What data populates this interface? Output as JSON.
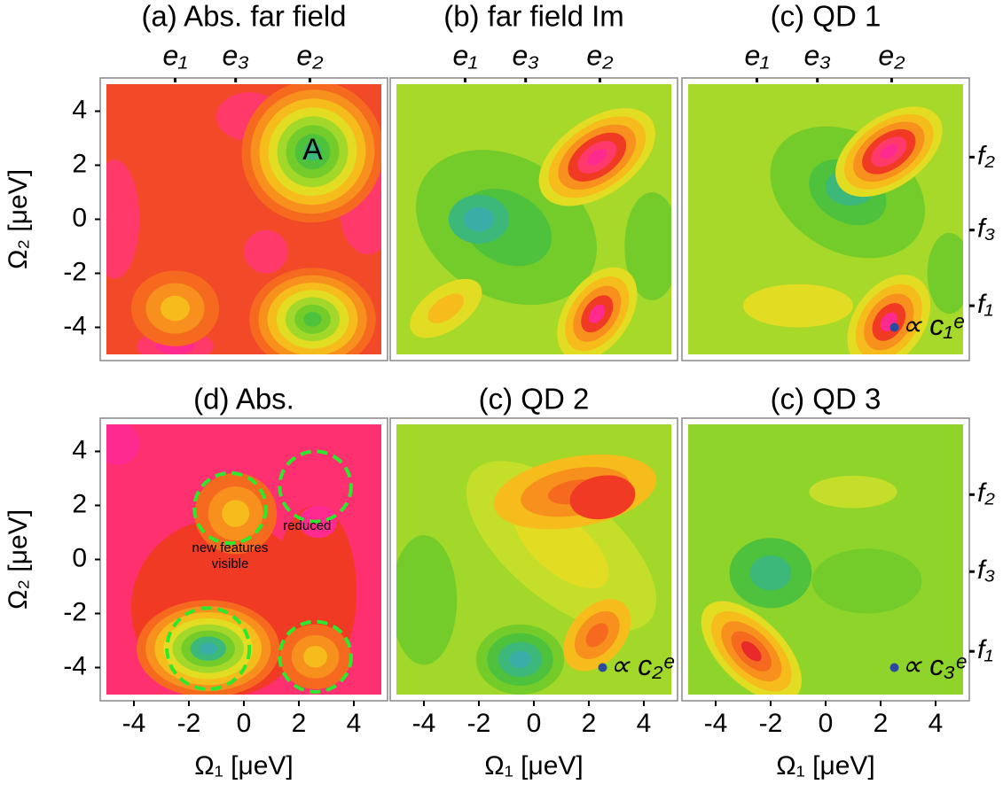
{
  "chart_data": [
    {
      "type": "contour",
      "title": "(a) Abs. far field",
      "xlim": [
        -5,
        5
      ],
      "ylim": [
        -5,
        5
      ],
      "yticks": [
        -4,
        -2,
        0,
        2,
        4
      ],
      "ylabel": "Ω₂ [μeV]",
      "x2ticks": [
        {
          "value": -2.5,
          "label": "e₁"
        },
        {
          "value": -0.3,
          "label": "e₃"
        },
        {
          "value": 2.4,
          "label": "e₂"
        }
      ],
      "annotations": [
        "A"
      ]
    },
    {
      "type": "contour",
      "title": "(b) far field Im",
      "xlim": [
        -5,
        5
      ],
      "ylim": [
        -5,
        5
      ],
      "x2ticks": [
        {
          "value": -2.5,
          "label": "e₁"
        },
        {
          "value": -0.3,
          "label": "e₃"
        },
        {
          "value": 2.4,
          "label": "e₂"
        }
      ]
    },
    {
      "type": "contour",
      "title": "(c) QD 1",
      "xlim": [
        -5,
        5
      ],
      "ylim": [
        -5,
        5
      ],
      "x2ticks": [
        {
          "value": -2.5,
          "label": "e₁"
        },
        {
          "value": -0.3,
          "label": "e₃"
        },
        {
          "value": 2.4,
          "label": "e₂"
        }
      ],
      "y2ticks": [
        {
          "value": 2.3,
          "label": "f₂"
        },
        {
          "value": -0.4,
          "label": "f₃"
        },
        {
          "value": -3.2,
          "label": "f₁"
        }
      ],
      "annotations": [
        "∝ c₁ᵉ"
      ]
    },
    {
      "type": "contour",
      "title": "(d) Abs.",
      "xlim": [
        -5,
        5
      ],
      "ylim": [
        -5,
        5
      ],
      "xticks": [
        -4,
        -2,
        0,
        2,
        4
      ],
      "yticks": [
        -4,
        -2,
        0,
        2,
        4
      ],
      "xlabel": "Ω₁ [μeV]",
      "ylabel": "Ω₂ [μeV]",
      "annotations": [
        "new features visible",
        "reduced"
      ]
    },
    {
      "type": "contour",
      "title": "(c) QD 2",
      "xlim": [
        -5,
        5
      ],
      "ylim": [
        -5,
        5
      ],
      "xticks": [
        -4,
        -2,
        0,
        2,
        4
      ],
      "xlabel": "Ω₁ [μeV]",
      "annotations": [
        "∝ c₂ᵉ"
      ]
    },
    {
      "type": "contour",
      "title": "(c) QD 3",
      "xlim": [
        -5,
        5
      ],
      "ylim": [
        -5,
        5
      ],
      "xticks": [
        -4,
        -2,
        0,
        2,
        4
      ],
      "xlabel": "Ω₁ [μeV]",
      "y2ticks": [
        {
          "value": 2.4,
          "label": "f₂"
        },
        {
          "value": -0.45,
          "label": "f₃"
        },
        {
          "value": -3.4,
          "label": "f₁"
        }
      ],
      "annotations": [
        "∝ c₃ᵉ"
      ]
    }
  ]
}
